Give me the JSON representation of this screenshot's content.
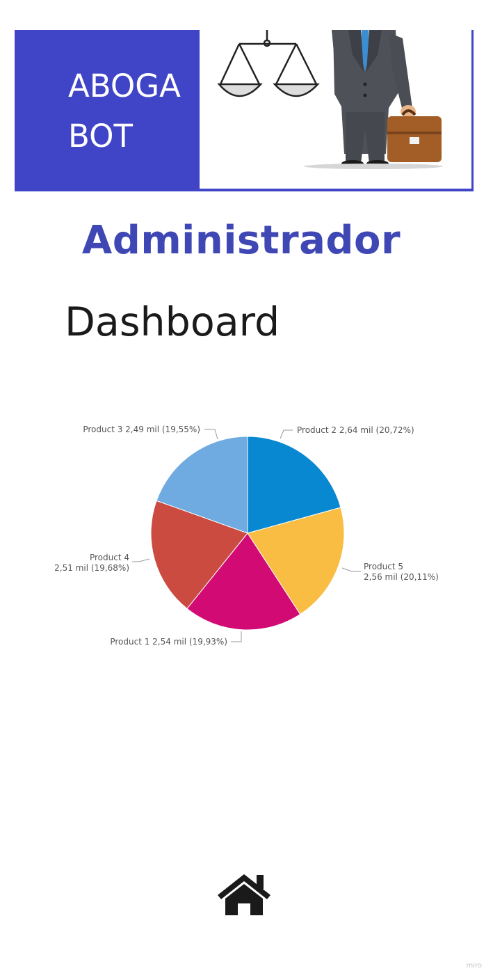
{
  "banner": {
    "brand_line_1": "ABOGA",
    "brand_line_2": "BOT",
    "accent_color": "#4044c6"
  },
  "page": {
    "admin_title": "Administrador",
    "dashboard_title": "Dashboard"
  },
  "chart_data": {
    "type": "pie",
    "title": "",
    "slices": [
      {
        "name": "Product 2",
        "value_label": "2,64 mil",
        "value": 2.64,
        "percent_label": "20,72%",
        "percent": 20.72,
        "color": "#0788d0"
      },
      {
        "name": "Product 5",
        "value_label": "2,56 mil",
        "value": 2.56,
        "percent_label": "20,11%",
        "percent": 20.11,
        "color": "#f9bd44"
      },
      {
        "name": "Product 1",
        "value_label": "2,54 mil",
        "value": 2.54,
        "percent_label": "19,93%",
        "percent": 19.93,
        "color": "#d20a73"
      },
      {
        "name": "Product 4",
        "value_label": "2,51 mil",
        "value": 2.51,
        "percent_label": "19,68%",
        "percent": 19.68,
        "color": "#cb4b40"
      },
      {
        "name": "Product 3",
        "value_label": "2,49 mil",
        "value": 2.49,
        "percent_label": "19,55%",
        "percent": 19.55,
        "color": "#6fabe0"
      }
    ]
  },
  "nav": {
    "home_icon": "home-icon"
  },
  "watermark": "miro"
}
